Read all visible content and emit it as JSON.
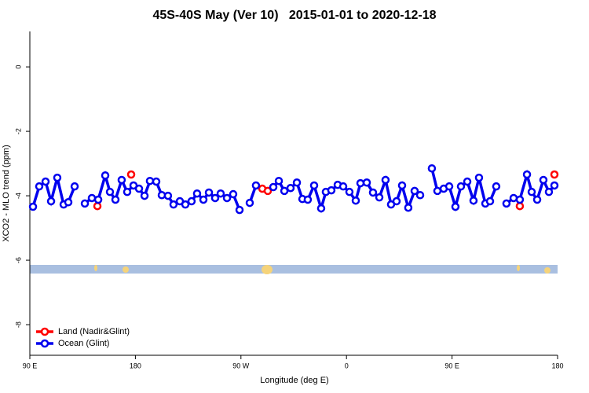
{
  "chart_data": {
    "type": "line",
    "title": "45S-40S May (Ver 10)   2015-01-01 to 2020-12-18",
    "x_label": "Longitude (deg E)",
    "y_label": "XCO2 - MLO trend (ppm)",
    "xlim": [
      90,
      540
    ],
    "ylim": [
      -8.95,
      1.1
    ],
    "xticks": [
      {
        "value": 90,
        "label": "90 E"
      },
      180,
      {
        "value": 270,
        "label": "90 W"
      },
      {
        "value": 360,
        "label": "0"
      },
      {
        "value": 450,
        "label": "90 E"
      },
      {
        "value": 540,
        "label": "180"
      }
    ],
    "yticks": [
      0,
      -2,
      -4,
      -6,
      -8
    ],
    "legend": "bottom-left",
    "series": [
      {
        "name": "Land (Nadir&Glint)",
        "color": "#ff0000",
        "x": [
          147.6,
          162,
          176.4,
          232,
          288.2,
          292.9,
          400,
          507.8,
          522,
          537.3
        ],
        "values": [
          -4.32,
          null,
          -3.34,
          null,
          -3.78,
          -3.85,
          null,
          -4.32,
          null,
          -3.34
        ]
      },
      {
        "name": "Ocean (Glint)",
        "color": "#0000ee",
        "x": [
          92.7,
          98.0,
          103.4,
          108.1,
          113.4,
          118.8,
          122.8,
          128.2,
          132.0,
          136.9,
          142.9,
          148.3,
          154.3,
          158.3,
          163.0,
          168.3,
          173.0,
          178.4,
          183.1,
          187.8,
          192.4,
          197.8,
          202.5,
          207.8,
          212.5,
          217.9,
          222.6,
          227.9,
          232.6,
          238.0,
          242.7,
          248.0,
          252.7,
          258.1,
          263.4,
          268.8,
          272.8,
          277.5,
          282.8,
          290.0,
          297.6,
          302.3,
          307.0,
          312.3,
          317.7,
          322.4,
          327.0,
          332.4,
          338.4,
          342.4,
          347.1,
          352.5,
          357.2,
          362.5,
          367.9,
          371.9,
          377.3,
          382.6,
          388.0,
          393.3,
          398.0,
          402.7,
          407.4,
          412.7,
          418.1,
          422.8,
          427.5,
          432.8,
          437.5,
          442.9,
          447.6,
          452.9,
          457.6,
          463.0,
          468.3,
          473.0,
          478.4,
          482.4,
          487.7,
          491.8,
          496.4,
          502.5,
          507.8,
          513.9,
          517.9,
          522.6,
          527.9,
          532.6,
          537.3
        ],
        "values": [
          -4.34,
          -3.71,
          -3.56,
          -4.17,
          -3.44,
          -4.27,
          -4.2,
          -3.71,
          null,
          -4.24,
          -4.07,
          -4.12,
          -3.37,
          -3.88,
          -4.12,
          -3.51,
          -3.88,
          -3.68,
          -3.78,
          -4.0,
          -3.54,
          -3.56,
          -3.98,
          -4.0,
          -4.27,
          -4.17,
          -4.27,
          -4.17,
          -3.93,
          -4.12,
          -3.9,
          -4.07,
          -3.93,
          -4.07,
          -3.95,
          -4.44,
          null,
          -4.22,
          -3.68,
          null,
          -3.73,
          -3.54,
          -3.85,
          -3.76,
          -3.59,
          -4.1,
          -4.12,
          -3.68,
          -4.39,
          -3.88,
          -3.83,
          -3.66,
          -3.71,
          -3.88,
          -4.15,
          -3.61,
          -3.59,
          -3.9,
          -4.05,
          -3.51,
          -4.27,
          -4.17,
          -3.68,
          -4.37,
          -3.85,
          -3.98,
          null,
          -3.15,
          -3.85,
          -3.78,
          -3.71,
          -4.34,
          -3.71,
          -3.56,
          -4.15,
          -3.44,
          -4.24,
          -4.17,
          -3.71,
          null,
          -4.24,
          -4.07,
          -4.12,
          -3.34,
          -3.88,
          -4.12,
          -3.51,
          -3.88,
          -3.68
        ]
      }
    ]
  }
}
